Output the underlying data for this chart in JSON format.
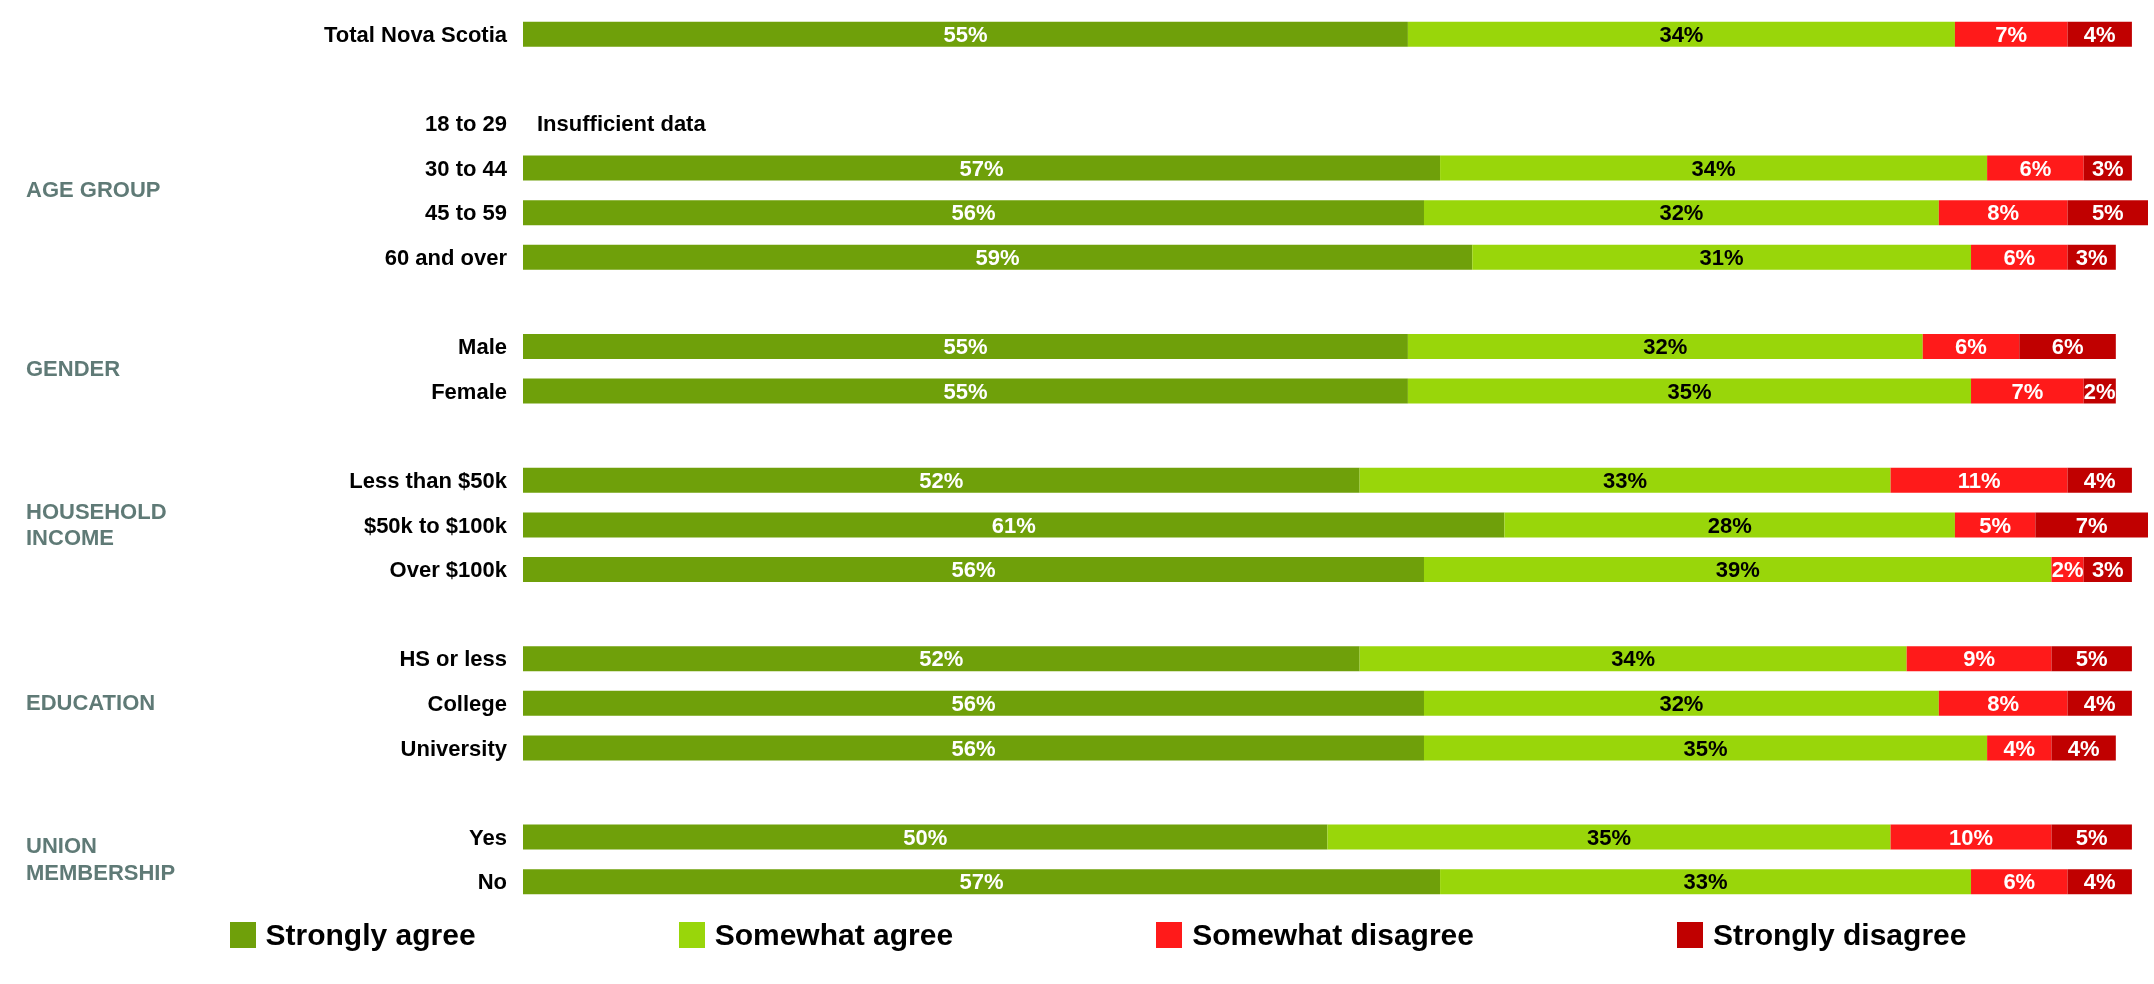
{
  "chart_data": {
    "type": "bar",
    "orientation": "horizontal",
    "stacked": true,
    "legend": "bottom",
    "categories": [
      "Total Nova Scotia",
      null,
      "18 to 29",
      "30 to 44",
      "45 to 59",
      "60 and over",
      null,
      "Male",
      "Female",
      null,
      "Less than $50k",
      "$50k to $100k",
      "Over $100k",
      null,
      "HS or less",
      "College",
      "University",
      null,
      "Yes",
      "No"
    ],
    "series": [
      {
        "name": "Strongly agree",
        "color": "#6fa00a",
        "values": [
          55,
          null,
          null,
          57,
          56,
          59,
          null,
          55,
          55,
          null,
          52,
          61,
          56,
          null,
          52,
          56,
          56,
          null,
          50,
          57
        ],
        "value_labels": [
          "55%",
          null,
          null,
          "57%",
          "56%",
          "59%",
          null,
          "55%",
          "55%",
          null,
          "52%",
          "61%",
          "56%",
          null,
          "52%",
          "56%",
          "56%",
          null,
          "50%",
          "57%"
        ]
      },
      {
        "name": "Somewhat agree",
        "color": "#99d60a",
        "values": [
          34,
          null,
          null,
          34,
          32,
          31,
          null,
          32,
          35,
          null,
          33,
          28,
          39,
          null,
          34,
          32,
          35,
          null,
          35,
          33
        ],
        "value_labels": [
          "34%",
          null,
          null,
          "34%",
          "32%",
          "31%",
          null,
          "32%",
          "35%",
          null,
          "33%",
          "28%",
          "39%",
          null,
          "34%",
          "32%",
          "35%",
          null,
          "35%",
          "33%"
        ]
      },
      {
        "name": "Somewhat disagree",
        "color": "#ff1a1a",
        "values": [
          7,
          null,
          null,
          6,
          8,
          6,
          null,
          6,
          7,
          null,
          11,
          5,
          2,
          null,
          9,
          8,
          4,
          null,
          10,
          6
        ],
        "value_labels": [
          "7%",
          null,
          null,
          "6%",
          "8%",
          "6%",
          null,
          "6%",
          "7%",
          null,
          "11%",
          "5%",
          "2%",
          null,
          "9%",
          "8%",
          "4%",
          null,
          "10%",
          "6%"
        ]
      },
      {
        "name": "Strongly disagree",
        "color": "#c00000",
        "values": [
          4,
          null,
          null,
          3,
          5,
          3,
          null,
          6,
          2,
          null,
          4,
          7,
          3,
          null,
          5,
          4,
          4,
          null,
          5,
          4
        ],
        "value_labels": [
          "4%",
          null,
          null,
          "3%",
          "5%",
          "3%",
          null,
          "6%",
          "2%",
          null,
          "4%",
          "7%",
          "3%",
          null,
          "5%",
          "4%",
          "4%",
          null,
          "5%",
          "4%"
        ]
      }
    ],
    "annotations": [
      "Insufficient data",
      "AGE GROUP",
      "GENDER",
      "HOUSEHOLD\nINCOME",
      "EDUCATION",
      "UNION\nMEMBERSHIP"
    ]
  }
}
